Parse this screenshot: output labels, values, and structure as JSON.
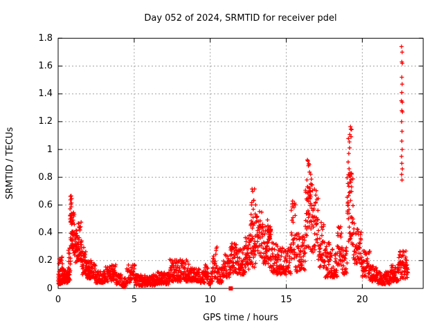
{
  "chart_data": {
    "type": "scatter",
    "title": "Day 052 of 2024, SRMTID for receiver pdel",
    "xlabel": "GPS time / hours",
    "ylabel": "SRMTID / TECUs",
    "xlim": [
      0,
      24
    ],
    "ylim": [
      0,
      1.8
    ],
    "xticks": {
      "values": [
        0,
        5,
        10,
        15,
        20
      ],
      "labels": [
        "0",
        "5",
        "10",
        "15",
        "20"
      ]
    },
    "yticks": {
      "values": [
        0,
        0.2,
        0.4,
        0.6,
        0.8,
        1.0,
        1.2,
        1.4,
        1.6,
        1.8
      ],
      "labels": [
        "0",
        "0.2",
        "0.4",
        "0.6",
        "0.8",
        "1",
        "1.2",
        "1.4",
        "1.6",
        "1.8"
      ]
    },
    "grid": true,
    "legend": "none",
    "marker": "plus",
    "colors": {
      "points": "#ff0000",
      "grid": "#a0a0a0",
      "border": "#000000",
      "text": "#000000",
      "background": "#ffffff"
    },
    "seed": 20240052,
    "density_bands_format": "[xStart, xEnd, count, yMin, yMax, dist] dist: 0=bottom-weighted, 1=uniform",
    "density_bands": [
      [
        0.0,
        0.3,
        48,
        0.03,
        0.15,
        0
      ],
      [
        0.05,
        0.3,
        12,
        0.13,
        0.23,
        1
      ],
      [
        0.3,
        0.65,
        50,
        0.04,
        0.14,
        0
      ],
      [
        0.55,
        0.8,
        25,
        0.06,
        0.13,
        0
      ],
      [
        0.65,
        0.82,
        18,
        0.1,
        0.3,
        1
      ],
      [
        0.78,
        0.95,
        32,
        0.28,
        0.68,
        1
      ],
      [
        0.9,
        1.1,
        28,
        0.2,
        0.55,
        1
      ],
      [
        1.1,
        1.3,
        30,
        0.18,
        0.42,
        1
      ],
      [
        1.3,
        1.55,
        38,
        0.18,
        0.5,
        1
      ],
      [
        1.55,
        1.85,
        36,
        0.1,
        0.3,
        0
      ],
      [
        1.85,
        2.15,
        40,
        0.07,
        0.2,
        0
      ],
      [
        2.15,
        2.45,
        28,
        0.07,
        0.21,
        0
      ],
      [
        2.45,
        3.1,
        60,
        0.04,
        0.13,
        0
      ],
      [
        3.1,
        3.5,
        34,
        0.05,
        0.16,
        0
      ],
      [
        3.5,
        3.8,
        26,
        0.05,
        0.17,
        1
      ],
      [
        3.8,
        4.15,
        30,
        0.03,
        0.1,
        0
      ],
      [
        4.15,
        4.5,
        26,
        0.01,
        0.08,
        0
      ],
      [
        4.5,
        5.05,
        45,
        0.04,
        0.17,
        0
      ],
      [
        5.05,
        6.4,
        115,
        0.02,
        0.1,
        0
      ],
      [
        6.4,
        7.3,
        78,
        0.03,
        0.12,
        0
      ],
      [
        7.3,
        8.6,
        115,
        0.05,
        0.21,
        0
      ],
      [
        8.6,
        9.35,
        65,
        0.05,
        0.15,
        0
      ],
      [
        9.35,
        9.65,
        26,
        0.04,
        0.13,
        0
      ],
      [
        9.65,
        9.85,
        18,
        0.06,
        0.18,
        1
      ],
      [
        9.85,
        10.15,
        25,
        0.03,
        0.12,
        0
      ],
      [
        10.15,
        10.45,
        22,
        0.07,
        0.3,
        1
      ],
      [
        10.45,
        10.8,
        28,
        0.04,
        0.15,
        0
      ],
      [
        10.8,
        11.3,
        45,
        0.08,
        0.25,
        0
      ],
      [
        11.3,
        11.75,
        45,
        0.1,
        0.33,
        1
      ],
      [
        11.75,
        12.3,
        48,
        0.1,
        0.3,
        0
      ],
      [
        12.3,
        12.65,
        35,
        0.12,
        0.38,
        1
      ],
      [
        12.65,
        13.0,
        34,
        0.25,
        0.72,
        1
      ],
      [
        12.65,
        13.0,
        20,
        0.15,
        0.3,
        1
      ],
      [
        13.0,
        13.45,
        42,
        0.2,
        0.58,
        1
      ],
      [
        13.45,
        14.0,
        50,
        0.15,
        0.45,
        1
      ],
      [
        13.75,
        14.0,
        14,
        0.3,
        0.5,
        1
      ],
      [
        14.0,
        14.55,
        48,
        0.1,
        0.33,
        0
      ],
      [
        14.55,
        15.3,
        62,
        0.1,
        0.3,
        0
      ],
      [
        15.3,
        15.6,
        30,
        0.2,
        0.63,
        1
      ],
      [
        15.6,
        16.25,
        58,
        0.12,
        0.4,
        0
      ],
      [
        16.25,
        16.75,
        48,
        0.25,
        0.75,
        1
      ],
      [
        16.35,
        16.65,
        18,
        0.6,
        0.94,
        1
      ],
      [
        16.75,
        17.1,
        32,
        0.25,
        0.73,
        1
      ],
      [
        17.1,
        17.55,
        40,
        0.15,
        0.5,
        0
      ],
      [
        17.55,
        18.35,
        75,
        0.08,
        0.33,
        0
      ],
      [
        18.35,
        18.65,
        26,
        0.15,
        0.45,
        1
      ],
      [
        18.65,
        19.0,
        28,
        0.1,
        0.3,
        0
      ],
      [
        19.0,
        19.4,
        48,
        0.28,
        0.85,
        1
      ],
      [
        19.05,
        19.3,
        12,
        0.8,
        1.19,
        1
      ],
      [
        19.4,
        19.95,
        48,
        0.18,
        0.48,
        0
      ],
      [
        19.95,
        20.5,
        46,
        0.08,
        0.28,
        0
      ],
      [
        20.5,
        21.0,
        48,
        0.05,
        0.16,
        0
      ],
      [
        21.0,
        21.8,
        70,
        0.03,
        0.12,
        0
      ],
      [
        21.8,
        22.4,
        55,
        0.05,
        0.17,
        0
      ],
      [
        22.4,
        23.0,
        55,
        0.07,
        0.27,
        0
      ]
    ],
    "outlier_column_points": [
      [
        22.58,
        1.74
      ],
      [
        22.62,
        1.7
      ],
      [
        22.6,
        1.63
      ],
      [
        22.63,
        1.62
      ],
      [
        22.6,
        1.52
      ],
      [
        22.62,
        1.47
      ],
      [
        22.6,
        1.41
      ],
      [
        22.57,
        1.35
      ],
      [
        22.63,
        1.34
      ],
      [
        22.6,
        1.28
      ],
      [
        22.64,
        1.27
      ],
      [
        22.59,
        1.2
      ],
      [
        22.61,
        1.13
      ],
      [
        22.6,
        1.06
      ],
      [
        22.62,
        1.0
      ],
      [
        22.58,
        0.95
      ],
      [
        22.6,
        0.9
      ],
      [
        22.63,
        0.86
      ],
      [
        22.59,
        0.82
      ],
      [
        22.61,
        0.78
      ]
    ],
    "square_marker_point": [
      11.35,
      0.0
    ]
  }
}
